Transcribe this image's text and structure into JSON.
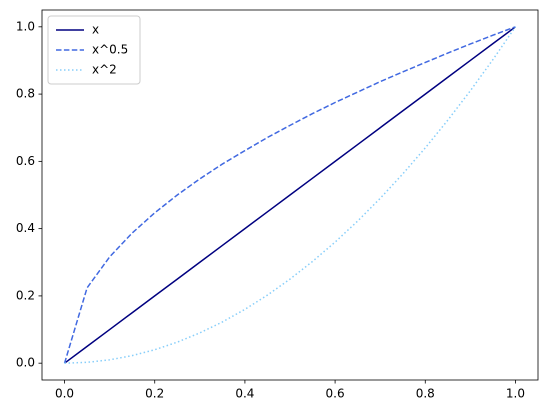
{
  "chart_data": {
    "type": "line",
    "x": [
      0,
      0.05,
      0.1,
      0.15,
      0.2,
      0.25,
      0.3,
      0.35,
      0.4,
      0.45,
      0.5,
      0.55,
      0.6,
      0.65,
      0.7,
      0.75,
      0.8,
      0.85,
      0.9,
      0.95,
      1
    ],
    "series": [
      {
        "name": "x",
        "color": "#000080",
        "linestyle": "solid",
        "values": [
          0,
          0.05,
          0.1,
          0.15,
          0.2,
          0.25,
          0.3,
          0.35,
          0.4,
          0.45,
          0.5,
          0.55,
          0.6,
          0.65,
          0.7,
          0.75,
          0.8,
          0.85,
          0.9,
          0.95,
          1
        ]
      },
      {
        "name": "x^0.5",
        "color": "#4169e1",
        "linestyle": "dashed",
        "values": [
          0,
          0.224,
          0.316,
          0.387,
          0.447,
          0.5,
          0.548,
          0.592,
          0.632,
          0.671,
          0.707,
          0.742,
          0.775,
          0.806,
          0.837,
          0.866,
          0.894,
          0.922,
          0.949,
          0.975,
          1
        ]
      },
      {
        "name": "x^2",
        "color": "#87cefa",
        "linestyle": "dotted",
        "values": [
          0,
          0.0025,
          0.01,
          0.0225,
          0.04,
          0.0625,
          0.09,
          0.1225,
          0.16,
          0.2025,
          0.25,
          0.3025,
          0.36,
          0.4225,
          0.49,
          0.5625,
          0.64,
          0.7225,
          0.81,
          0.9025,
          1
        ]
      }
    ],
    "xlim": [
      -0.05,
      1.05
    ],
    "ylim": [
      -0.05,
      1.05
    ],
    "xticks": [
      {
        "value": 0,
        "label": "0.0"
      },
      0.2,
      0.4,
      0.6,
      0.8,
      {
        "value": 1,
        "label": "1.0"
      }
    ],
    "yticks": [
      {
        "value": 0,
        "label": "0.0"
      },
      0.2,
      0.4,
      0.6,
      0.8,
      {
        "value": 1,
        "label": "1.0"
      }
    ],
    "grid": false,
    "legend": "upper left"
  }
}
